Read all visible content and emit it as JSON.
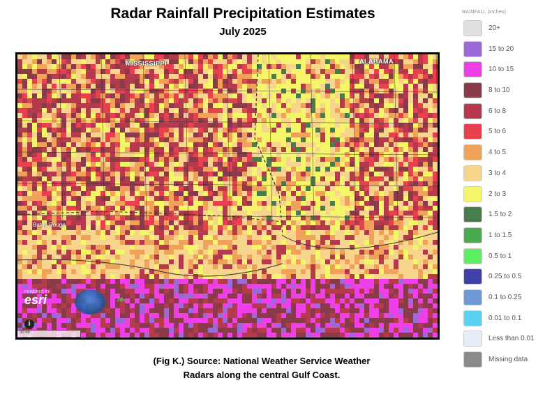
{
  "title": "Radar Rainfall Precipitation Estimates",
  "subtitle": "July 2025",
  "map": {
    "state_labels": {
      "mississippi": "MISSISSIPPI",
      "alabama": "ALABAMA"
    },
    "city_labels": {
      "baton_rouge": "Baton Rouge"
    },
    "attribution": {
      "powered": "POWERED BY",
      "brand": "esri"
    },
    "scale_text": "30 mi",
    "info_icon": "info-icon"
  },
  "legend": {
    "title": "RAINFALL (inches)",
    "items": [
      {
        "label": "20+",
        "color": "#e0e0e0"
      },
      {
        "label": "15 to 20",
        "color": "#9b6ad8"
      },
      {
        "label": "10 to 15",
        "color": "#ee3fe8"
      },
      {
        "label": "8 to 10",
        "color": "#8a3a48"
      },
      {
        "label": "6 to 8",
        "color": "#b53a4c"
      },
      {
        "label": "5 to 6",
        "color": "#e8404f"
      },
      {
        "label": "4 to 5",
        "color": "#f0a25a"
      },
      {
        "label": "3 to 4",
        "color": "#f7d58c"
      },
      {
        "label": "2 to 3",
        "color": "#f5f56a"
      },
      {
        "label": "1.5 to 2",
        "color": "#4a7d4e"
      },
      {
        "label": "1 to 1.5",
        "color": "#4aaa4f"
      },
      {
        "label": "0.5 to 1",
        "color": "#5fee5f"
      },
      {
        "label": "0.25 to 0.5",
        "color": "#4040a8"
      },
      {
        "label": "0.1 to 0.25",
        "color": "#6e9bd8"
      },
      {
        "label": "0.01 to 0.1",
        "color": "#5ad0f2"
      },
      {
        "label": "Less than 0.01",
        "color": "#e6eef8"
      },
      {
        "label": "Missing data",
        "color": "#8a8a8a"
      }
    ]
  },
  "caption": {
    "line1": "(Fig K.) Source: National Weather Service Weather",
    "line2": "Radars along the central Gulf Coast."
  }
}
